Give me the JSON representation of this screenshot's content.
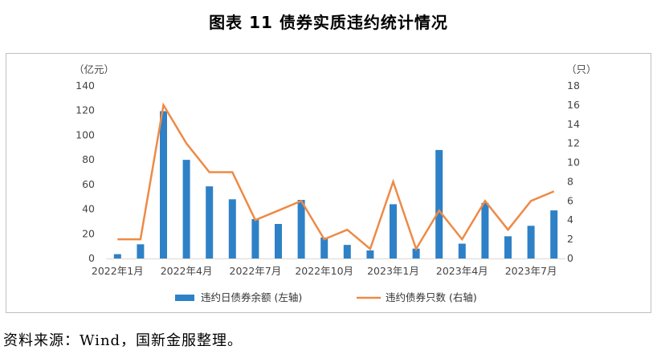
{
  "figure": {
    "title": "图表 11  债券实质违约统计情况",
    "source": "资料来源：Wind，国新金服整理。"
  },
  "colors": {
    "bar": "#2e81c6",
    "line": "#ee8a46",
    "axis": "#d9d9d9"
  },
  "chart_data": {
    "type": "bar+line",
    "x": [
      "2022-01",
      "2022-02",
      "2022-03",
      "2022-04",
      "2022-05",
      "2022-06",
      "2022-07",
      "2022-08",
      "2022-09",
      "2022-10",
      "2022-11",
      "2022-12",
      "2023-01",
      "2023-02",
      "2023-03",
      "2023-04",
      "2023-05",
      "2023-06",
      "2023-07",
      "2023-08"
    ],
    "x_tick_labels": [
      "2022年1月",
      "2022年4月",
      "2022年7月",
      "2022年10月",
      "2023年1月",
      "2023年4月",
      "2023年7月"
    ],
    "x_tick_indices": [
      0,
      3,
      6,
      9,
      12,
      15,
      18
    ],
    "series": [
      {
        "name": "违约日债券余额 (左轴)",
        "type": "bar",
        "axis": "left",
        "values": [
          3.5,
          11.5,
          119.5,
          80,
          58.5,
          48,
          32,
          28,
          47.5,
          17,
          11,
          6.5,
          44,
          8,
          88,
          12,
          45,
          18,
          26.5,
          39
        ]
      },
      {
        "name": "违约债券只数 (右轴)",
        "type": "line",
        "axis": "right",
        "values": [
          2,
          2,
          16,
          12,
          9,
          9,
          4,
          5,
          6,
          2,
          3,
          1,
          8,
          1,
          5,
          2,
          6,
          3,
          6,
          7
        ]
      }
    ],
    "left_axis": {
      "unit_label": "（亿元）",
      "min": 0,
      "max": 140,
      "ticks": [
        0,
        20,
        40,
        60,
        80,
        100,
        120,
        140
      ]
    },
    "right_axis": {
      "unit_label": "（只）",
      "min": 0,
      "max": 18,
      "ticks": [
        0,
        2,
        4,
        6,
        8,
        10,
        12,
        14,
        16,
        18
      ]
    },
    "grid": false,
    "legend_position": "bottom"
  }
}
